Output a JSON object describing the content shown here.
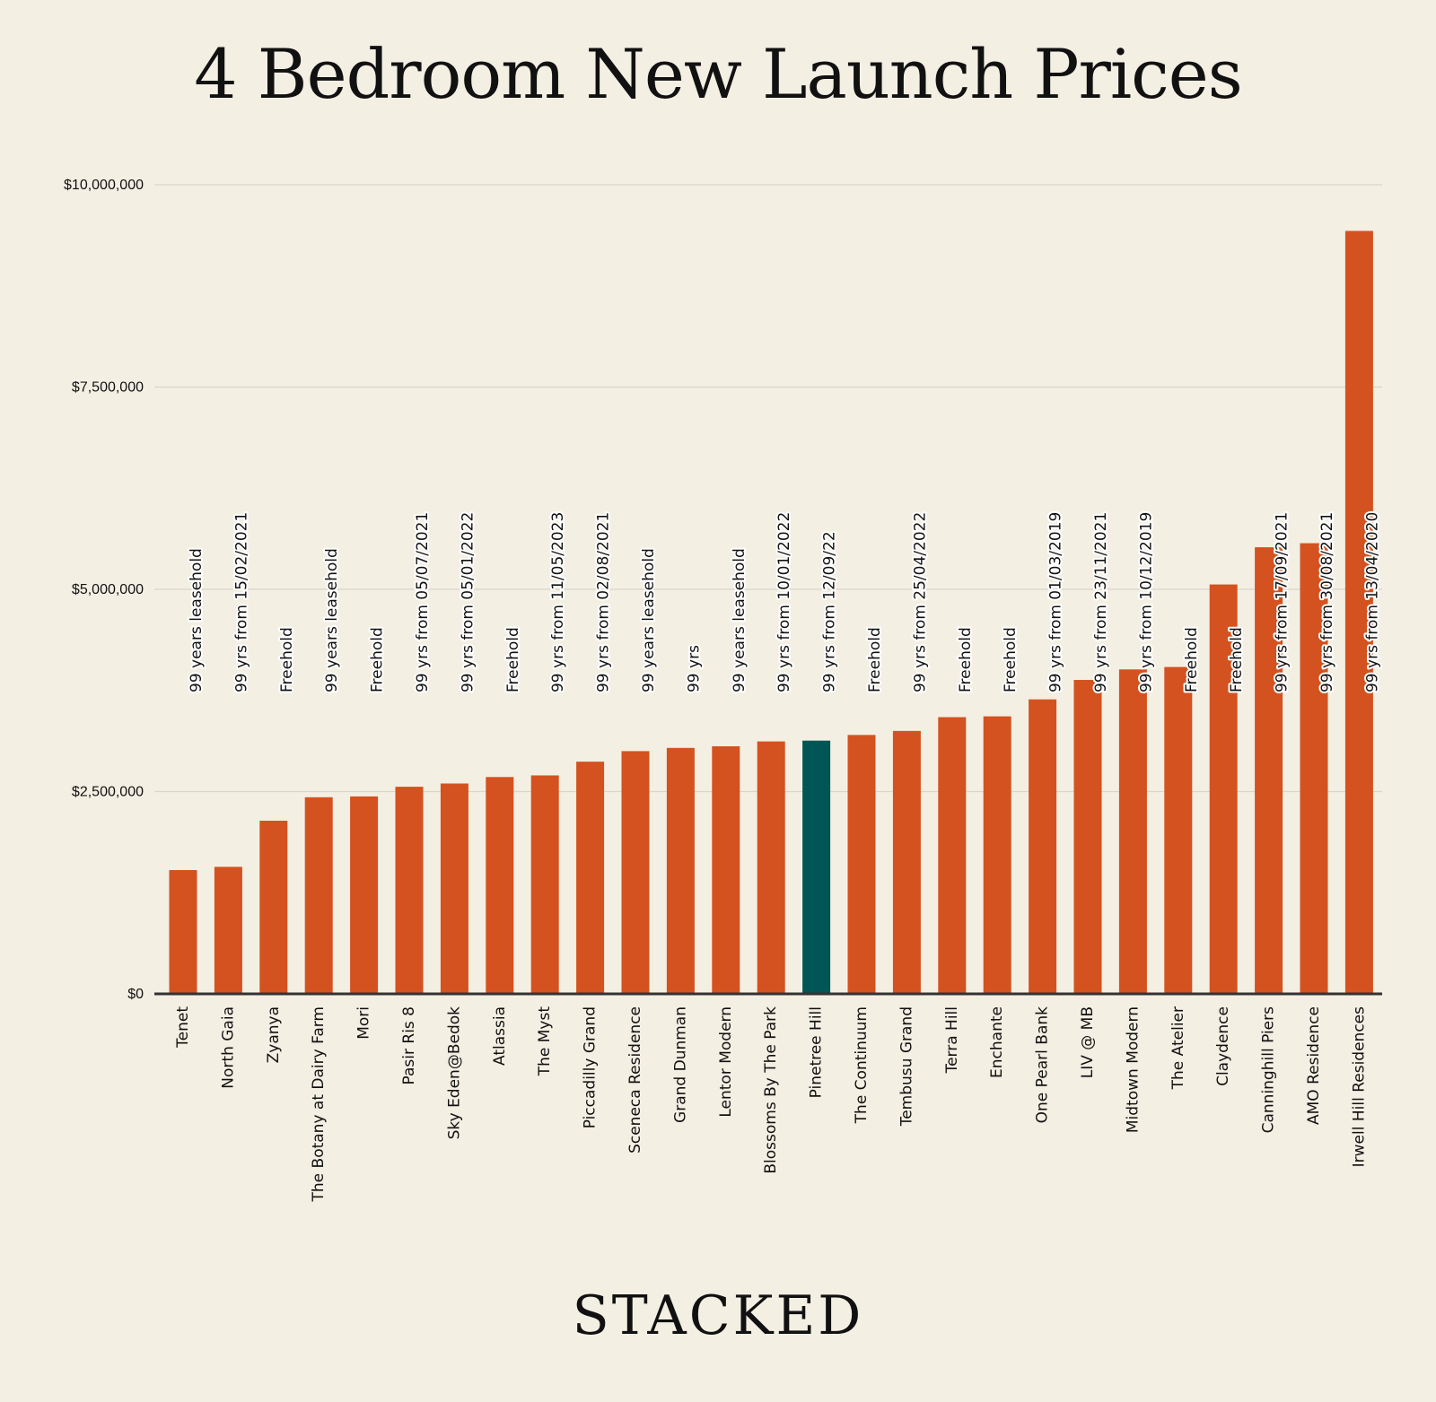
{
  "title": "4 Bedroom New Launch Prices",
  "brand": "STACKED",
  "colors": {
    "background": "#f4efe3",
    "bar": "#d4521f",
    "highlight": "#005654",
    "grid": "#d9d5cb",
    "axis": "#333333",
    "text": "#111111"
  },
  "chart_data": {
    "type": "bar",
    "title": "4 Bedroom New Launch Prices",
    "xlabel": "",
    "ylabel": "",
    "ylim": [
      0,
      10000000
    ],
    "yticks": [
      0,
      2500000,
      5000000,
      7500000,
      10000000
    ],
    "ytick_labels": [
      "$0",
      "$2,500,000",
      "$5,000,000",
      "$7,500,000",
      "$10,000,000"
    ],
    "grid": true,
    "highlight": "Pinetree Hill",
    "categories": [
      "Tenet",
      "North Gaia",
      "Zyanya",
      "The Botany at Dairy Farm",
      "Mori",
      "Pasir Ris 8",
      "Sky Eden@Bedok",
      "Atlassia",
      "The Myst",
      "Piccadilly Grand",
      "Sceneca Residence",
      "Grand Dunman",
      "Lentor Modern",
      "Blossoms By The Park",
      "Pinetree Hill",
      "The Continuum",
      "Tembusu Grand",
      "Terra Hill",
      "Enchante",
      "One Pearl Bank",
      "LIV @ MB",
      "Midtown Modern",
      "The Atelier",
      "Claydence",
      "Canninghill Piers",
      "AMO Residence",
      "Irwell Hill Residences"
    ],
    "values": [
      1530000,
      1570000,
      2140000,
      2430000,
      2440000,
      2560000,
      2600000,
      2680000,
      2700000,
      2870000,
      3000000,
      3040000,
      3060000,
      3120000,
      3130000,
      3200000,
      3250000,
      3420000,
      3430000,
      3640000,
      3880000,
      4010000,
      4040000,
      5060000,
      5520000,
      5570000,
      9430000
    ],
    "tenure_labels": [
      "99 years leasehold",
      "99 yrs from 15/02/2021",
      "Freehold",
      "99 years leasehold",
      "Freehold",
      "99 yrs from 05/07/2021",
      "99 yrs from 05/01/2022",
      "Freehold",
      "99 yrs from 11/05/2023",
      "99 yrs from 02/08/2021",
      "99 years leasehold",
      "99 yrs",
      "99 years leasehold",
      "99 yrs from 10/01/2022",
      "99 yrs from 12/09/22",
      "Freehold",
      "99 yrs from 25/04/2022",
      "Freehold",
      "Freehold",
      "99 yrs from 01/03/2019",
      "99 yrs from 23/11/2021",
      "99 yrs from 10/12/2019",
      "Freehold",
      "Freehold",
      "99 yrs from 17/09/2021",
      "99 yrs from 30/08/2021",
      "99 yrs from 13/04/2020"
    ]
  }
}
